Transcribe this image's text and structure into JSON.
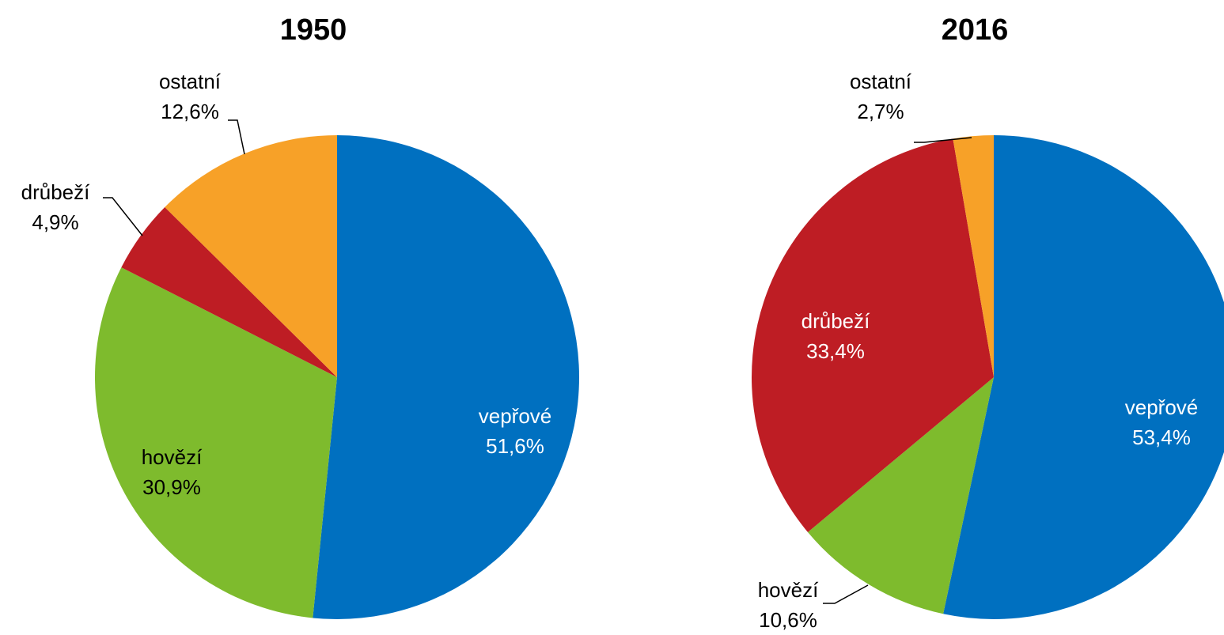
{
  "chart_data": [
    {
      "type": "pie",
      "title": "1950",
      "categories": [
        "vepřové",
        "hovězí",
        "drůbeží",
        "ostatní"
      ],
      "values": [
        51.6,
        30.9,
        4.9,
        12.6
      ],
      "value_labels": [
        "51,6%",
        "30,9%",
        "4,9%",
        "12,6%"
      ],
      "colors": [
        "#0070c0",
        "#7ebb2d",
        "#be1d24",
        "#f7a128"
      ]
    },
    {
      "type": "pie",
      "title": "2016",
      "categories": [
        "vepřové",
        "hovězí",
        "drůbeží",
        "ostatní"
      ],
      "values": [
        53.4,
        10.6,
        33.4,
        2.7
      ],
      "value_labels": [
        "53,4%",
        "10,6%",
        "33,4%",
        "2,7%"
      ],
      "colors": [
        "#0070c0",
        "#7ebb2d",
        "#be1d24",
        "#f7a128"
      ]
    }
  ]
}
